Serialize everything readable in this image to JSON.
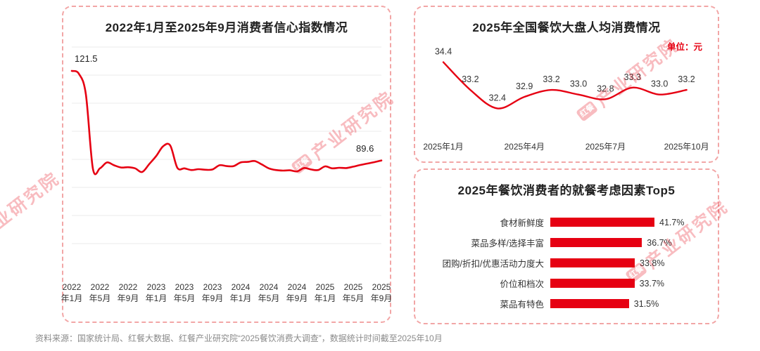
{
  "page": {
    "accent_color": "#e60012",
    "source_note": "资料来源：国家统计局、红餐大数据、红餐产业研究院“2025餐饮消费大调查”，数据统计时间截至2025年10月",
    "watermark": {
      "logo": "红餐",
      "text": "产业研究院"
    }
  },
  "chart_data": [
    {
      "id": "consumer-confidence-index",
      "type": "line",
      "title": "2022年1月至2025年9月消费者信心指数情况",
      "first_label": "121.5",
      "last_label": "89.6",
      "ylim": [
        60,
        130
      ],
      "grid_step": 10,
      "grid": true,
      "x_tick_labels_line1": [
        "2022",
        "2022",
        "2022",
        "2023",
        "2023",
        "2023",
        "2024",
        "2024",
        "2024",
        "2025",
        "2025",
        "2025"
      ],
      "x_tick_labels_line2": [
        "年1月",
        "年5月",
        "年9月",
        "年1月",
        "年5月",
        "年9月",
        "年1月",
        "年5月",
        "年9月",
        "年1月",
        "年5月",
        "年9月"
      ],
      "values": [
        121.5,
        120.5,
        113.2,
        86.7,
        86.8,
        88.9,
        87.9,
        87.1,
        87.2,
        86.8,
        85.5,
        88.3,
        91.2,
        94.7,
        94.9,
        87.0,
        86.8,
        86.2,
        86.5,
        86.3,
        86.4,
        87.9,
        87.6,
        87.6,
        88.9,
        89.1,
        89.4,
        88.2,
        86.8,
        86.2,
        86.0,
        86.1,
        85.7,
        86.9,
        86.4,
        86.2,
        87.5,
        86.8,
        87.0,
        86.9,
        87.4,
        88.0,
        88.5,
        89.0,
        89.6
      ]
    },
    {
      "id": "per-capita-spending-2025",
      "type": "line",
      "title": "2025年全国餐饮大盘人均消费情况",
      "unit_label": "单位：元",
      "ylim": [
        32.2,
        34.6
      ],
      "grid": false,
      "x_ticks": [
        "2025年1月",
        "2025年4月",
        "2025年7月",
        "2025年10月"
      ],
      "x_tick_indices": [
        0,
        3,
        6,
        9
      ],
      "values": [
        34.4,
        33.2,
        32.4,
        32.9,
        33.2,
        33.0,
        32.8,
        33.3,
        33.0,
        33.2
      ],
      "labels": [
        "34.4",
        "33.2",
        "32.4",
        "32.9",
        "33.2",
        "33.0",
        "32.8",
        "33.3",
        "33.0",
        "33.2"
      ]
    },
    {
      "id": "dining-consideration-top5",
      "type": "bar",
      "title": "2025年餐饮消费者的就餐考虑因素Top5",
      "categories": [
        "食材新鲜度",
        "菜品多样/选择丰富",
        "团购/折扣/优惠活动力度大",
        "价位和档次",
        "菜品有特色"
      ],
      "values": [
        41.7,
        36.7,
        33.8,
        33.7,
        31.5
      ],
      "value_labels": [
        "41.7%",
        "36.7%",
        "33.8%",
        "33.7%",
        "31.5%"
      ]
    }
  ]
}
